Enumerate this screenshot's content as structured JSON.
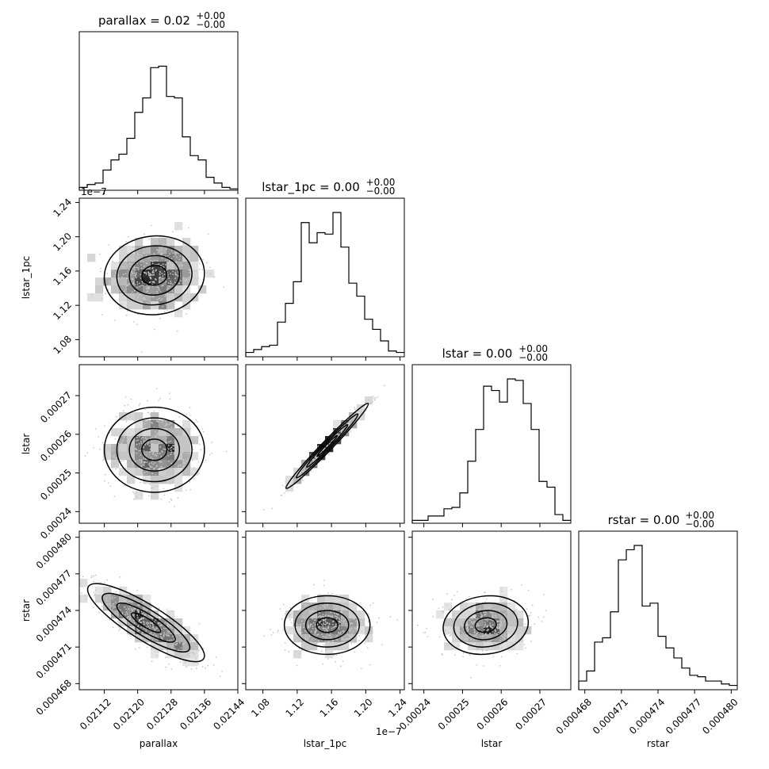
{
  "chart_data": {
    "type": "corner",
    "parameters": [
      {
        "key": "parallax",
        "label": "parallax",
        "title_main": "parallax = 0.02",
        "title_sup": "+0.00",
        "title_sub": "−0.00",
        "range": [
          0.02106,
          0.02144
        ],
        "ticks": [
          0.02112,
          0.0212,
          0.02128,
          0.02136,
          0.02144
        ],
        "tick_labels": [
          "0.02112",
          "0.02120",
          "0.02128",
          "0.02136",
          "0.02144"
        ],
        "offset": ""
      },
      {
        "key": "lstar_1pc",
        "label": "lstar_1pc",
        "title_main": "lstar_1pc = 0.00",
        "title_sup": "+0.00",
        "title_sub": "−0.00",
        "range": [
          1.06,
          1.245
        ],
        "ticks": [
          1.08,
          1.12,
          1.16,
          1.2,
          1.24
        ],
        "tick_labels": [
          "1.08",
          "1.12",
          "1.16",
          "1.20",
          "1.24"
        ],
        "offset": "1e−7"
      },
      {
        "key": "lstar",
        "label": "lstar",
        "title_main": "lstar = 0.00",
        "title_sup": "+0.00",
        "title_sub": "−0.00",
        "range": [
          0.000237,
          0.000278
        ],
        "ticks": [
          0.00024,
          0.00025,
          0.00026,
          0.00027
        ],
        "tick_labels": [
          "0.00024",
          "0.00025",
          "0.00026",
          "0.00027"
        ],
        "offset": ""
      },
      {
        "key": "rstar",
        "label": "rstar",
        "title_main": "rstar = 0.00",
        "title_sup": "+0.00",
        "title_sub": "−0.00",
        "range": [
          0.0004675,
          0.0004805
        ],
        "ticks": [
          0.000468,
          0.000471,
          0.000474,
          0.000477,
          0.00048
        ],
        "tick_labels": [
          "0.000468",
          "0.000471",
          "0.000474",
          "0.000477",
          "0.000480"
        ],
        "offset": ""
      }
    ],
    "histograms": [
      [
        0.02,
        0.04,
        0.05,
        0.14,
        0.21,
        0.25,
        0.36,
        0.54,
        0.64,
        0.85,
        0.86,
        0.65,
        0.64,
        0.37,
        0.24,
        0.21,
        0.09,
        0.05,
        0.02,
        0.01
      ],
      [
        0.03,
        0.05,
        0.07,
        0.08,
        0.24,
        0.37,
        0.52,
        0.93,
        0.79,
        0.86,
        0.85,
        1.0,
        0.76,
        0.51,
        0.42,
        0.26,
        0.19,
        0.11,
        0.04,
        0.03
      ],
      [
        0.02,
        0.02,
        0.05,
        0.05,
        0.1,
        0.11,
        0.21,
        0.43,
        0.65,
        0.95,
        0.92,
        0.84,
        1.0,
        0.99,
        0.83,
        0.65,
        0.29,
        0.25,
        0.06,
        0.02
      ],
      [
        0.06,
        0.13,
        0.33,
        0.36,
        0.54,
        0.9,
        0.97,
        1.0,
        0.58,
        0.6,
        0.37,
        0.29,
        0.22,
        0.15,
        0.1,
        0.09,
        0.06,
        0.06,
        0.04,
        0.03
      ]
    ],
    "pairs": [
      {
        "x": 0,
        "y": 1,
        "center": [
          0.02124,
          1.155
        ],
        "sigma": [
          6e-05,
          0.023
        ],
        "rho": 0.05
      },
      {
        "x": 0,
        "y": 2,
        "center": [
          0.02124,
          0.000256
        ],
        "sigma": [
          6e-05,
          5.5e-06
        ],
        "rho": 0.0
      },
      {
        "x": 1,
        "y": 2,
        "center": [
          1.155,
          0.000257
        ],
        "sigma": [
          0.024,
          5.5e-06
        ],
        "rho": 0.985
      },
      {
        "x": 0,
        "y": 3,
        "center": [
          0.02122,
          0.000473
        ],
        "sigma": [
          7e-05,
          1.6e-06
        ],
        "rho": -0.85
      },
      {
        "x": 1,
        "y": 3,
        "center": [
          1.155,
          0.0004728
        ],
        "sigma": [
          0.025,
          1.2e-06
        ],
        "rho": 0.0
      },
      {
        "x": 2,
        "y": 3,
        "center": [
          0.000256,
          0.0004728
        ],
        "sigma": [
          5.5e-06,
          1.2e-06
        ],
        "rho": 0.1
      }
    ],
    "grid": false
  }
}
